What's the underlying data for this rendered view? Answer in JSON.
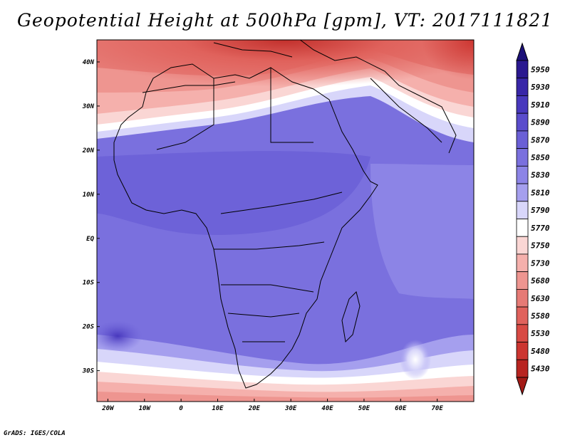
{
  "title": "Geopotential Height at 500hPa [gpm], VT: 2017111821",
  "credit": "GrADS: IGES/COLA",
  "map": {
    "lon_range": [
      -23,
      80
    ],
    "lat_range": [
      -37,
      45
    ],
    "lon_ticks": [
      {
        "value": -20,
        "label": "20W"
      },
      {
        "value": -10,
        "label": "10W"
      },
      {
        "value": 0,
        "label": "0"
      },
      {
        "value": 10,
        "label": "10E"
      },
      {
        "value": 20,
        "label": "20E"
      },
      {
        "value": 30,
        "label": "30E"
      },
      {
        "value": 40,
        "label": "40E"
      },
      {
        "value": 50,
        "label": "50E"
      },
      {
        "value": 60,
        "label": "60E"
      },
      {
        "value": 70,
        "label": "70E"
      }
    ],
    "lat_ticks": [
      {
        "value": 40,
        "label": "40N"
      },
      {
        "value": 30,
        "label": "30N"
      },
      {
        "value": 20,
        "label": "20N"
      },
      {
        "value": 10,
        "label": "10N"
      },
      {
        "value": 0,
        "label": "EQ"
      },
      {
        "value": -10,
        "label": "10S"
      },
      {
        "value": -20,
        "label": "20S"
      },
      {
        "value": -30,
        "label": "30S"
      }
    ]
  },
  "colorbar": {
    "levels": [
      {
        "label": "5950",
        "color": "#2a1890"
      },
      {
        "label": "5930",
        "color": "#3826a8"
      },
      {
        "label": "5910",
        "color": "#4838bd"
      },
      {
        "label": "5890",
        "color": "#5a4ccc"
      },
      {
        "label": "5870",
        "color": "#6a5fd6"
      },
      {
        "label": "5850",
        "color": "#7a70de"
      },
      {
        "label": "5830",
        "color": "#8c84e6"
      },
      {
        "label": "5810",
        "color": "#a59fee"
      },
      {
        "label": "5790",
        "color": "#d8d6fa"
      },
      {
        "label": "5770",
        "color": "#ffffff"
      },
      {
        "label": "5750",
        "color": "#fad6d4"
      },
      {
        "label": "5730",
        "color": "#f5b0ac"
      },
      {
        "label": "5680",
        "color": "#ee9590"
      },
      {
        "label": "5630",
        "color": "#e67a75"
      },
      {
        "label": "5580",
        "color": "#e0625c"
      },
      {
        "label": "5530",
        "color": "#d84a44"
      },
      {
        "label": "5480",
        "color": "#cc3530"
      },
      {
        "label": "5430",
        "color": "#b82420"
      }
    ],
    "over_color": "#1c1078",
    "under_color": "#a31a16"
  }
}
